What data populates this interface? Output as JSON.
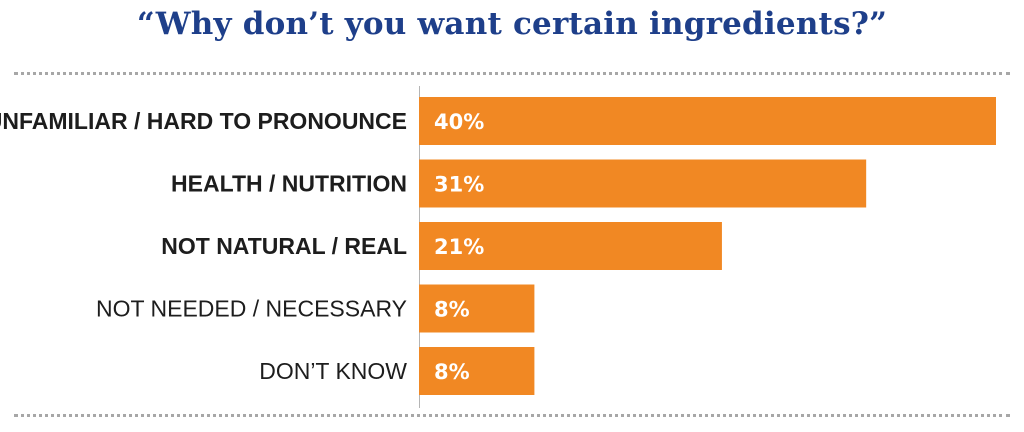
{
  "chart_data": {
    "type": "bar",
    "orientation": "horizontal",
    "title": "“Why don’t you want certain ingredients?”",
    "categories": [
      "UNFAMILIAR / HARD TO PRONOUNCE",
      "HEALTH / NUTRITION",
      "NOT NATURAL / REAL",
      "NOT NEEDED / NECESSARY",
      "DON’T KNOW"
    ],
    "values": [
      40,
      31,
      21,
      8,
      8
    ],
    "value_labels": [
      "40%",
      "31%",
      "21%",
      "8%",
      "8%"
    ],
    "emphasized": [
      true,
      true,
      true,
      false,
      false
    ],
    "xlim": [
      0,
      40
    ],
    "bar_color": "#f18823",
    "title_color": "#1e3f8a",
    "grid": false,
    "legend": "none"
  }
}
